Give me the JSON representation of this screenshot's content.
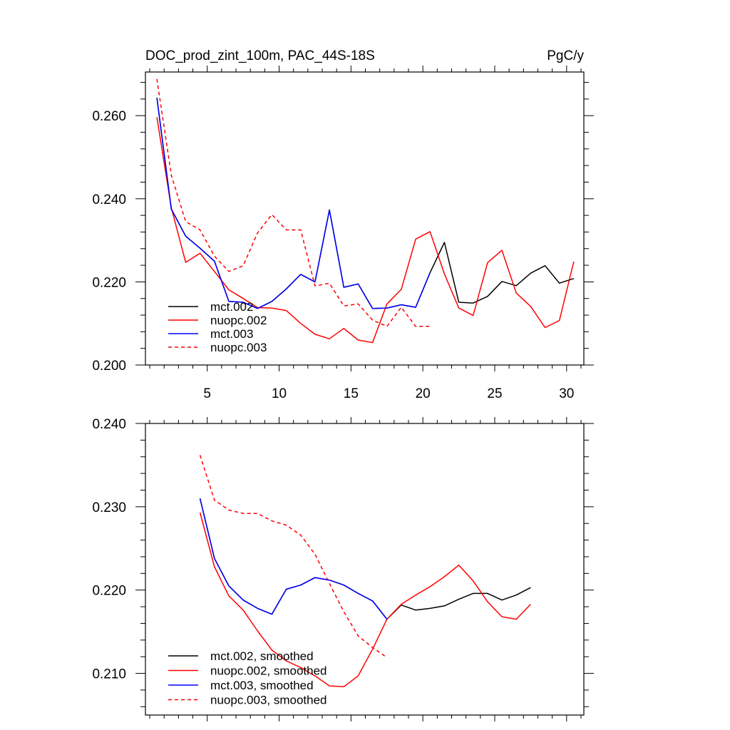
{
  "header": {
    "title": "DOC_prod_zint_100m, PAC_44S-18S",
    "units": "PgC/y"
  },
  "colors": {
    "mct002": "#000000",
    "nuopc002": "#ff0000",
    "mct003": "#0000ff",
    "nuopc003": "#ff0000",
    "axis": "#000000"
  },
  "chart_data": [
    {
      "type": "line",
      "title": "DOC_prod_zint_100m, PAC_44S-18S",
      "ylabel": "PgC/y",
      "xlim": [
        0.7,
        31.2
      ],
      "ylim": [
        0.2,
        0.2705
      ],
      "xticks": [
        5,
        10,
        15,
        20,
        25,
        30
      ],
      "xtick_labels": [
        "5",
        "10",
        "15",
        "20",
        "25",
        "30"
      ],
      "yticks": [
        0.2,
        0.22,
        0.24,
        0.26
      ],
      "ytick_labels": [
        "0.200",
        "0.220",
        "0.240",
        "0.260"
      ],
      "legend_position": "bottom-left",
      "series": [
        {
          "name": "mct.002",
          "style": "solid",
          "colorKey": "mct002",
          "x": [
            1.5,
            2.5,
            3.5,
            4.5,
            5.5,
            6.5,
            7.5,
            8.5,
            9.5,
            10.5,
            11.5,
            12.5,
            13.5,
            14.5,
            15.5,
            16.5,
            17.5,
            18.5,
            19.5,
            20.5,
            21.5,
            22.5,
            23.5,
            24.5,
            25.5,
            26.5,
            27.5,
            28.5,
            29.5,
            30.5
          ],
          "y": [
            0.2643,
            0.2375,
            0.231,
            0.2281,
            0.225,
            0.2153,
            0.2151,
            0.2136,
            0.2153,
            0.2183,
            0.2218,
            0.22,
            0.2373,
            0.2187,
            0.2195,
            0.2136,
            0.2137,
            0.2145,
            0.2139,
            0.2222,
            0.2295,
            0.2151,
            0.2149,
            0.2165,
            0.2201,
            0.2191,
            0.2221,
            0.2239,
            0.2197,
            0.2208
          ]
        },
        {
          "name": "nuopc.002",
          "style": "solid",
          "colorKey": "nuopc002",
          "x": [
            1.5,
            2.5,
            3.5,
            4.5,
            5.5,
            6.5,
            7.5,
            8.5,
            9.5,
            10.5,
            11.5,
            12.5,
            13.5,
            14.5,
            15.5,
            16.5,
            17.5,
            18.5,
            19.5,
            20.5,
            21.5,
            22.5,
            23.5,
            24.5,
            25.5,
            26.5,
            27.5,
            28.5,
            29.5,
            30.5
          ],
          "y": [
            0.2596,
            0.2378,
            0.2247,
            0.2269,
            0.2225,
            0.2181,
            0.216,
            0.2138,
            0.2137,
            0.2131,
            0.21,
            0.2074,
            0.2063,
            0.2088,
            0.206,
            0.2054,
            0.2147,
            0.2182,
            0.2303,
            0.2321,
            0.2219,
            0.2137,
            0.2119,
            0.2246,
            0.2276,
            0.2173,
            0.2141,
            0.209,
            0.2107,
            0.2249
          ]
        },
        {
          "name": "mct.003",
          "style": "solid",
          "colorKey": "mct003",
          "x": [
            1.5,
            2.5,
            3.5,
            4.5,
            5.5,
            6.5,
            7.5,
            8.5,
            9.5,
            10.5,
            11.5,
            12.5,
            13.5,
            14.5,
            15.5,
            16.5,
            17.5,
            18.5,
            19.5,
            20.5
          ],
          "y": [
            0.2643,
            0.2375,
            0.231,
            0.2281,
            0.225,
            0.2153,
            0.2151,
            0.2136,
            0.2153,
            0.2183,
            0.2218,
            0.22,
            0.2373,
            0.2187,
            0.2195,
            0.2136,
            0.2137,
            0.2145,
            0.2139,
            0.2222
          ]
        },
        {
          "name": "nuopc.003",
          "style": "dashed",
          "colorKey": "nuopc003",
          "x": [
            1.5,
            2.5,
            3.5,
            4.5,
            5.5,
            6.5,
            7.5,
            8.5,
            9.5,
            10.5,
            11.5,
            12.5,
            13.5,
            14.5,
            15.5,
            16.5,
            17.5,
            18.5,
            19.5,
            20.5
          ],
          "y": [
            0.2688,
            0.2457,
            0.2345,
            0.2325,
            0.2262,
            0.2225,
            0.2239,
            0.2318,
            0.2362,
            0.2325,
            0.2325,
            0.219,
            0.2197,
            0.2142,
            0.2147,
            0.2108,
            0.2093,
            0.2139,
            0.2093,
            0.2093
          ]
        }
      ]
    },
    {
      "type": "line",
      "title": "",
      "ylabel": "",
      "xlim": [
        0.7,
        31.2
      ],
      "ylim": [
        0.205,
        0.24
      ],
      "xticks": [
        5,
        10,
        15,
        20,
        25,
        30
      ],
      "xtick_labels": [],
      "yticks": [
        0.21,
        0.22,
        0.23,
        0.24
      ],
      "ytick_labels": [
        "0.210",
        "0.220",
        "0.230",
        "0.240"
      ],
      "legend_position": "bottom-left",
      "series": [
        {
          "name": "mct.002, smoothed",
          "style": "solid",
          "colorKey": "mct002",
          "x": [
            4.5,
            5.5,
            6.5,
            7.5,
            8.5,
            9.5,
            10.5,
            11.5,
            12.5,
            13.5,
            14.5,
            15.5,
            16.5,
            17.5,
            18.5,
            19.5,
            20.5,
            21.5,
            22.5,
            23.5,
            24.5,
            25.5,
            26.5,
            27.5
          ],
          "y": [
            0.231,
            0.2238,
            0.2205,
            0.2188,
            0.2178,
            0.2171,
            0.2201,
            0.2206,
            0.2215,
            0.2212,
            0.2206,
            0.2196,
            0.2187,
            0.2165,
            0.2182,
            0.2176,
            0.2178,
            0.2181,
            0.2189,
            0.2196,
            0.2196,
            0.2188,
            0.2194,
            0.2203
          ]
        },
        {
          "name": "nuopc.002, smoothed",
          "style": "solid",
          "colorKey": "nuopc002",
          "x": [
            4.5,
            5.5,
            6.5,
            7.5,
            8.5,
            9.5,
            10.5,
            11.5,
            12.5,
            13.5,
            14.5,
            15.5,
            16.5,
            17.5,
            18.5,
            19.5,
            20.5,
            21.5,
            22.5,
            23.5,
            24.5,
            25.5,
            26.5,
            27.5
          ],
          "y": [
            0.2293,
            0.2228,
            0.2193,
            0.2176,
            0.2151,
            0.2128,
            0.2115,
            0.2107,
            0.2097,
            0.2085,
            0.2084,
            0.2097,
            0.2129,
            0.2165,
            0.2183,
            0.2194,
            0.2204,
            0.2216,
            0.223,
            0.2211,
            0.2186,
            0.2168,
            0.2165,
            0.2183
          ]
        },
        {
          "name": "mct.003, smoothed",
          "style": "solid",
          "colorKey": "mct003",
          "x": [
            4.5,
            5.5,
            6.5,
            7.5,
            8.5,
            9.5,
            10.5,
            11.5,
            12.5,
            13.5,
            14.5,
            15.5,
            16.5,
            17.5
          ],
          "y": [
            0.231,
            0.2238,
            0.2205,
            0.2188,
            0.2178,
            0.2171,
            0.2201,
            0.2206,
            0.2215,
            0.2212,
            0.2206,
            0.2196,
            0.2187,
            0.2165
          ]
        },
        {
          "name": "nuopc.003, smoothed",
          "style": "dashed",
          "colorKey": "nuopc003",
          "x": [
            4.5,
            5.5,
            6.5,
            7.5,
            8.5,
            9.5,
            10.5,
            11.5,
            12.5,
            13.5,
            14.5,
            15.5,
            16.5,
            17.5
          ],
          "y": [
            0.2362,
            0.2308,
            0.2296,
            0.2292,
            0.2292,
            0.2283,
            0.2278,
            0.2266,
            0.2243,
            0.2208,
            0.2174,
            0.2145,
            0.2131,
            0.2119
          ]
        }
      ]
    }
  ]
}
